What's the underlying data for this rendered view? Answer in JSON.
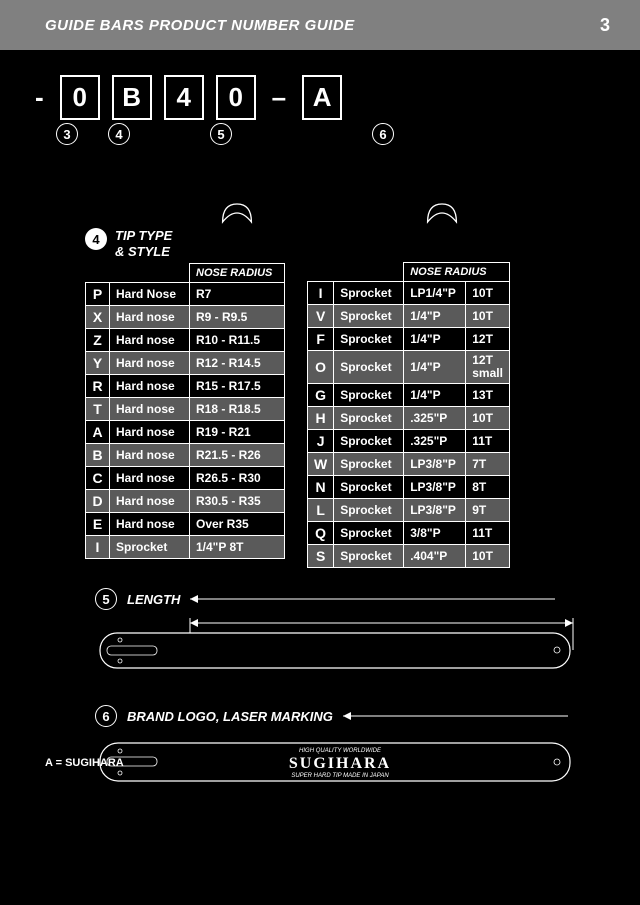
{
  "header": {
    "title": "GUIDE BARS PRODUCT NUMBER GUIDE",
    "page": "3"
  },
  "code": {
    "b1": "0",
    "b2": "B",
    "b3": "4",
    "b4": "0",
    "dash": "–",
    "b5": "A"
  },
  "refs": {
    "r3": "3",
    "r4": "4",
    "r5": "5",
    "r6": "6"
  },
  "tipType": {
    "label4": "4",
    "title": "TIP TYPE\n& STYLE",
    "noseRadius": "NOSE RADIUS"
  },
  "table1": {
    "rows": [
      {
        "k": "P",
        "t": "Hard Nose",
        "r": "R7",
        "s": false
      },
      {
        "k": "X",
        "t": "Hard nose",
        "r": "R9 - R9.5",
        "s": true
      },
      {
        "k": "Z",
        "t": "Hard nose",
        "r": "R10 - R11.5",
        "s": false
      },
      {
        "k": "Y",
        "t": "Hard nose",
        "r": "R12 - R14.5",
        "s": true
      },
      {
        "k": "R",
        "t": "Hard nose",
        "r": "R15 - R17.5",
        "s": false
      },
      {
        "k": "T",
        "t": "Hard nose",
        "r": "R18 - R18.5",
        "s": true
      },
      {
        "k": "A",
        "t": "Hard nose",
        "r": "R19 - R21",
        "s": false
      },
      {
        "k": "B",
        "t": "Hard nose",
        "r": "R21.5 - R26",
        "s": true
      },
      {
        "k": "C",
        "t": "Hard nose",
        "r": "R26.5 - R30",
        "s": false
      },
      {
        "k": "D",
        "t": "Hard nose",
        "r": "R30.5 - R35",
        "s": true
      },
      {
        "k": "E",
        "t": "Hard nose",
        "r": "Over R35",
        "s": false
      },
      {
        "k": "I",
        "t": "Sprocket",
        "r": "1/4\"P     8T",
        "s": true
      }
    ]
  },
  "table2": {
    "header": "NOSE RADIUS",
    "rows": [
      {
        "k": "I",
        "t": "Sprocket",
        "p": "LP1/4\"P",
        "n": "10T",
        "s": false
      },
      {
        "k": "V",
        "t": "Sprocket",
        "p": "1/4\"P",
        "n": "10T",
        "s": true
      },
      {
        "k": "F",
        "t": "Sprocket",
        "p": "1/4\"P",
        "n": "12T",
        "s": false
      },
      {
        "k": "O",
        "t": "Sprocket",
        "p": "1/4\"P",
        "n": "12T\nsmall",
        "s": true
      },
      {
        "k": "G",
        "t": "Sprocket",
        "p": "1/4\"P",
        "n": "13T",
        "s": false
      },
      {
        "k": "H",
        "t": "Sprocket",
        "p": ".325\"P",
        "n": "10T",
        "s": true
      },
      {
        "k": "J",
        "t": "Sprocket",
        "p": ".325\"P",
        "n": "11T",
        "s": false
      },
      {
        "k": "W",
        "t": "Sprocket",
        "p": "LP3/8\"P",
        "n": "7T",
        "s": true
      },
      {
        "k": "N",
        "t": "Sprocket",
        "p": "LP3/8\"P",
        "n": "8T",
        "s": false
      },
      {
        "k": "L",
        "t": "Sprocket",
        "p": "LP3/8\"P",
        "n": "9T",
        "s": true
      },
      {
        "k": "Q",
        "t": "Sprocket",
        "p": "3/8\"P",
        "n": "11T",
        "s": false
      },
      {
        "k": "S",
        "t": "Sprocket",
        "p": ".404\"P",
        "n": "10T",
        "s": true
      }
    ]
  },
  "length": {
    "num": "5",
    "title": "LENGTH"
  },
  "brand": {
    "num": "6",
    "title": "BRAND LOGO, LASER MARKING",
    "note": "A = SUGIHARA",
    "logo": "SUGIHARA",
    "sub1": "HIGH QUALITY  WORLDWIDE",
    "sub2": "SUPER HARD TIP   MADE IN JAPAN"
  }
}
